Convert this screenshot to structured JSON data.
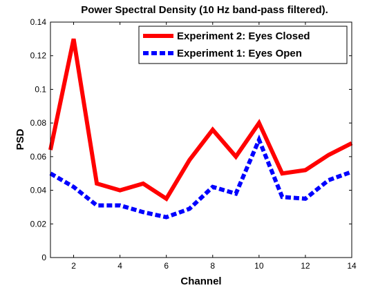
{
  "chart_data": {
    "type": "line",
    "title": "Power Spectral Density (10 Hz band-pass filtered).",
    "xlabel": "Channel",
    "ylabel": "PSD",
    "xlim": [
      1,
      14
    ],
    "ylim": [
      0,
      0.14
    ],
    "x_ticks": [
      2,
      4,
      6,
      8,
      10,
      12,
      14
    ],
    "y_ticks": [
      0,
      0.02,
      0.04,
      0.06,
      0.08,
      0.1,
      0.12,
      0.14
    ],
    "y_tick_labels": [
      "0",
      "0.02",
      "0.04",
      "0.06",
      "0.08",
      "0.1",
      "0.12",
      "0.14"
    ],
    "grid": false,
    "legend_position": "top-right",
    "x": [
      1,
      2,
      3,
      4,
      5,
      6,
      7,
      8,
      9,
      10,
      11,
      12,
      13,
      14
    ],
    "series": [
      {
        "name": "Experiment 2: Eyes Closed",
        "color": "#ff0000",
        "style": "solid",
        "values": [
          0.064,
          0.13,
          0.044,
          0.04,
          0.044,
          0.035,
          0.058,
          0.076,
          0.06,
          0.08,
          0.05,
          0.052,
          0.061,
          0.068
        ]
      },
      {
        "name": "Experiment 1: Eyes Open",
        "color": "#0000ff",
        "style": "dashed",
        "values": [
          0.05,
          0.042,
          0.031,
          0.031,
          0.027,
          0.024,
          0.029,
          0.042,
          0.038,
          0.07,
          0.036,
          0.035,
          0.046,
          0.051
        ]
      }
    ]
  }
}
